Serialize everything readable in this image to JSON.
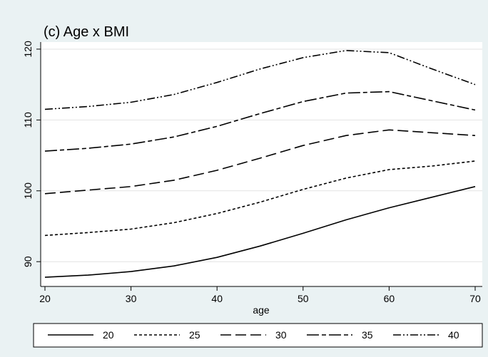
{
  "chart_data": {
    "type": "line",
    "title": "(c) Age x BMI",
    "xlabel": "age",
    "ylabel": "",
    "xlim": [
      20,
      70
    ],
    "ylim": [
      86.5,
      121
    ],
    "x_ticks": [
      20,
      30,
      40,
      50,
      60,
      70
    ],
    "y_ticks": [
      90,
      100,
      110,
      120
    ],
    "grid": "horizontal",
    "legend_position": "bottom",
    "series": [
      {
        "name": "20",
        "dash": "solid",
        "x": [
          20,
          25,
          30,
          35,
          40,
          45,
          50,
          55,
          60,
          65,
          70
        ],
        "y": [
          87.8,
          88.1,
          88.6,
          89.4,
          90.6,
          92.2,
          94.0,
          95.9,
          97.6,
          99.1,
          100.6
        ]
      },
      {
        "name": "25",
        "dash": "short",
        "x": [
          20,
          25,
          30,
          35,
          40,
          45,
          50,
          55,
          60,
          65,
          70
        ],
        "y": [
          93.7,
          94.1,
          94.6,
          95.5,
          96.8,
          98.4,
          100.2,
          101.8,
          103.0,
          103.5,
          104.2
        ]
      },
      {
        "name": "30",
        "dash": "long",
        "x": [
          20,
          25,
          30,
          35,
          40,
          45,
          50,
          55,
          60,
          65,
          70
        ],
        "y": [
          99.6,
          100.1,
          100.6,
          101.5,
          102.9,
          104.6,
          106.4,
          107.8,
          108.6,
          108.2,
          107.8
        ]
      },
      {
        "name": "35",
        "dash": "long-short",
        "x": [
          20,
          25,
          30,
          35,
          40,
          45,
          50,
          55,
          60,
          65,
          70
        ],
        "y": [
          105.6,
          106.0,
          106.6,
          107.6,
          109.1,
          110.9,
          112.6,
          113.8,
          114.0,
          112.7,
          111.4
        ]
      },
      {
        "name": "40",
        "dash": "dash-dot-dot",
        "x": [
          20,
          25,
          30,
          35,
          40,
          45,
          50,
          55,
          60,
          65,
          70
        ],
        "y": [
          111.5,
          111.9,
          112.5,
          113.6,
          115.3,
          117.2,
          118.8,
          119.8,
          119.5,
          117.2,
          115.0
        ]
      }
    ]
  }
}
